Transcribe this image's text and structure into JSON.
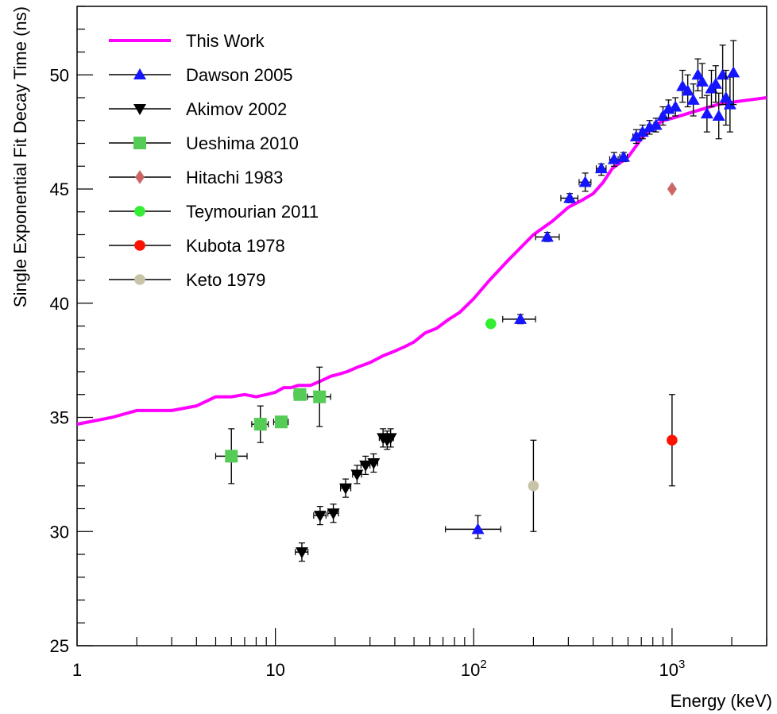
{
  "chart_data": {
    "type": "scatter",
    "xlabel": "Energy (keV)",
    "ylabel": "Single Exponential Fit Decay Time (ns)",
    "xscale": "log",
    "xlim": [
      1,
      3000
    ],
    "ylim": [
      25,
      53
    ],
    "x_ticks": [
      {
        "value": 1,
        "base": "1",
        "exp": ""
      },
      {
        "value": 10,
        "base": "10",
        "exp": ""
      },
      {
        "value": 100,
        "base": "10",
        "exp": "2"
      },
      {
        "value": 1000,
        "base": "10",
        "exp": "3"
      }
    ],
    "y_ticks": [
      25,
      30,
      35,
      40,
      45,
      50
    ],
    "legend_position": "top-left",
    "series": [
      {
        "name": "This Work",
        "kind": "line",
        "color": "#ff00ff",
        "points": [
          [
            1,
            34.7
          ],
          [
            1.5,
            35.0
          ],
          [
            2,
            35.3
          ],
          [
            3,
            35.3
          ],
          [
            4,
            35.5
          ],
          [
            5,
            35.9
          ],
          [
            6,
            35.9
          ],
          [
            7,
            36.0
          ],
          [
            8,
            35.9
          ],
          [
            9,
            36.0
          ],
          [
            10,
            36.1
          ],
          [
            11,
            36.3
          ],
          [
            12,
            36.3
          ],
          [
            13,
            36.4
          ],
          [
            15,
            36.4
          ],
          [
            17,
            36.6
          ],
          [
            19,
            36.8
          ],
          [
            21,
            36.9
          ],
          [
            23,
            37.0
          ],
          [
            26,
            37.2
          ],
          [
            30,
            37.4
          ],
          [
            35,
            37.7
          ],
          [
            40,
            37.9
          ],
          [
            45,
            38.1
          ],
          [
            50,
            38.3
          ],
          [
            57,
            38.7
          ],
          [
            65,
            38.9
          ],
          [
            75,
            39.3
          ],
          [
            85,
            39.6
          ],
          [
            100,
            40.2
          ],
          [
            120,
            41.0
          ],
          [
            150,
            41.9
          ],
          [
            200,
            43.0
          ],
          [
            250,
            43.6
          ],
          [
            300,
            44.2
          ],
          [
            350,
            44.5
          ],
          [
            400,
            44.8
          ],
          [
            450,
            45.3
          ],
          [
            500,
            45.9
          ],
          [
            600,
            46.4
          ],
          [
            700,
            47.2
          ],
          [
            800,
            47.7
          ],
          [
            900,
            48.0
          ],
          [
            1000,
            48.1
          ],
          [
            1300,
            48.4
          ],
          [
            1700,
            48.7
          ],
          [
            2200,
            48.85
          ],
          [
            3000,
            49.0
          ]
        ]
      },
      {
        "name": "Dawson 2005",
        "kind": "points",
        "marker": "triangle-up",
        "color": "#1515ff",
        "points": [
          {
            "x": 105,
            "y": 30.1,
            "xlo": 72,
            "xhi": 137,
            "ylo": 29.7,
            "yhi": 30.7
          },
          {
            "x": 172,
            "y": 39.3,
            "xlo": 140,
            "xhi": 205,
            "ylo": 39.1,
            "yhi": 39.5
          },
          {
            "x": 235,
            "y": 42.9,
            "xlo": 205,
            "xhi": 270,
            "ylo": 42.7,
            "yhi": 43.1
          },
          {
            "x": 305,
            "y": 44.6,
            "xlo": 275,
            "xhi": 335,
            "ylo": 44.4,
            "yhi": 44.8
          },
          {
            "x": 365,
            "y": 45.3,
            "xlo": 340,
            "xhi": 390,
            "ylo": 44.9,
            "yhi": 45.7
          },
          {
            "x": 440,
            "y": 45.9,
            "xlo": 415,
            "xhi": 465,
            "ylo": 45.6,
            "yhi": 46.1
          },
          {
            "x": 510,
            "y": 46.3,
            "xlo": 485,
            "xhi": 535,
            "ylo": 46.0,
            "yhi": 46.6
          },
          {
            "x": 570,
            "y": 46.4,
            "xlo": 545,
            "xhi": 595,
            "ylo": 46.2,
            "yhi": 46.6
          },
          {
            "x": 660,
            "y": 47.3,
            "xlo": 635,
            "xhi": 690,
            "ylo": 47.0,
            "yhi": 47.6
          },
          {
            "x": 710,
            "y": 47.5,
            "xlo": 690,
            "xhi": 730,
            "ylo": 47.2,
            "yhi": 47.8
          },
          {
            "x": 770,
            "y": 47.7,
            "xlo": 750,
            "xhi": 790,
            "ylo": 47.4,
            "yhi": 48.0
          },
          {
            "x": 830,
            "y": 47.8,
            "xlo": 810,
            "xhi": 850,
            "ylo": 47.5,
            "yhi": 48.1
          },
          {
            "x": 900,
            "y": 48.2,
            "xlo": 880,
            "xhi": 920,
            "ylo": 47.8,
            "yhi": 48.6
          },
          {
            "x": 960,
            "y": 48.5,
            "xlo": 940,
            "xhi": 980,
            "ylo": 48.1,
            "yhi": 48.9
          },
          {
            "x": 1040,
            "y": 48.6,
            "xlo": 1020,
            "xhi": 1060,
            "ylo": 48.2,
            "yhi": 49.0
          },
          {
            "x": 1130,
            "y": 49.5,
            "xlo": 1110,
            "xhi": 1150,
            "ylo": 48.8,
            "yhi": 50.2
          },
          {
            "x": 1200,
            "y": 49.3,
            "xlo": 1180,
            "xhi": 1220,
            "ylo": 48.6,
            "yhi": 50.0
          },
          {
            "x": 1280,
            "y": 48.9,
            "xlo": 1260,
            "xhi": 1300,
            "ylo": 48.2,
            "yhi": 49.6
          },
          {
            "x": 1350,
            "y": 50.0,
            "xlo": 1330,
            "xhi": 1370,
            "ylo": 49.3,
            "yhi": 50.7
          },
          {
            "x": 1420,
            "y": 49.7,
            "xlo": 1400,
            "xhi": 1440,
            "ylo": 49.0,
            "yhi": 50.5
          },
          {
            "x": 1500,
            "y": 48.3,
            "xlo": 1480,
            "xhi": 1520,
            "ylo": 47.5,
            "yhi": 49.1
          },
          {
            "x": 1580,
            "y": 49.4,
            "xlo": 1560,
            "xhi": 1600,
            "ylo": 48.6,
            "yhi": 50.2
          },
          {
            "x": 1660,
            "y": 49.6,
            "xlo": 1640,
            "xhi": 1680,
            "ylo": 48.8,
            "yhi": 50.4
          },
          {
            "x": 1720,
            "y": 48.2,
            "xlo": 1700,
            "xhi": 1740,
            "ylo": 47.2,
            "yhi": 49.2
          },
          {
            "x": 1800,
            "y": 50.0,
            "xlo": 1780,
            "xhi": 1820,
            "ylo": 48.7,
            "yhi": 51.3
          },
          {
            "x": 1870,
            "y": 49.0,
            "xlo": 1850,
            "xhi": 1890,
            "ylo": 47.8,
            "yhi": 50.2
          },
          {
            "x": 1960,
            "y": 48.7,
            "xlo": 1940,
            "xhi": 1980,
            "ylo": 47.5,
            "yhi": 49.9
          },
          {
            "x": 2040,
            "y": 50.1,
            "xlo": 2020,
            "xhi": 2060,
            "ylo": 48.7,
            "yhi": 51.5
          }
        ]
      },
      {
        "name": "Akimov 2002",
        "kind": "points",
        "marker": "triangle-down",
        "color": "#000000",
        "points": [
          {
            "x": 13.6,
            "y": 29.1,
            "xlo": 12.6,
            "xhi": 14.6,
            "ylo": 28.7,
            "yhi": 29.5
          },
          {
            "x": 16.8,
            "y": 30.7,
            "xlo": 15.6,
            "xhi": 18.0,
            "ylo": 30.3,
            "yhi": 31.1
          },
          {
            "x": 19.6,
            "y": 30.8,
            "xlo": 18.4,
            "xhi": 20.8,
            "ylo": 30.4,
            "yhi": 31.2
          },
          {
            "x": 22.6,
            "y": 31.9,
            "xlo": 21.3,
            "xhi": 24.0,
            "ylo": 31.5,
            "yhi": 32.3
          },
          {
            "x": 25.8,
            "y": 32.5,
            "xlo": 24.5,
            "xhi": 27.2,
            "ylo": 32.1,
            "yhi": 32.9
          },
          {
            "x": 28.5,
            "y": 32.9,
            "xlo": 27.0,
            "xhi": 30.0,
            "ylo": 32.5,
            "yhi": 33.3
          },
          {
            "x": 31.3,
            "y": 33.0,
            "xlo": 29.8,
            "xhi": 32.8,
            "ylo": 32.6,
            "yhi": 33.4
          },
          {
            "x": 34.9,
            "y": 34.1,
            "xlo": 33.4,
            "xhi": 36.4,
            "ylo": 33.7,
            "yhi": 34.5
          },
          {
            "x": 36.6,
            "y": 34.0,
            "xlo": 35.2,
            "xhi": 38.0,
            "ylo": 33.6,
            "yhi": 34.4
          },
          {
            "x": 38.1,
            "y": 34.1,
            "xlo": 36.8,
            "xhi": 39.4,
            "ylo": 33.7,
            "yhi": 34.5
          }
        ]
      },
      {
        "name": "Ueshima 2010",
        "kind": "points",
        "marker": "square",
        "color": "#55cc55",
        "points": [
          {
            "x": 6.0,
            "y": 33.3,
            "xlo": 5.0,
            "xhi": 7.2,
            "ylo": 32.1,
            "yhi": 34.5
          },
          {
            "x": 8.4,
            "y": 34.7,
            "xlo": 7.6,
            "xhi": 9.2,
            "ylo": 33.9,
            "yhi": 35.5
          },
          {
            "x": 10.7,
            "y": 34.8,
            "xlo": 9.8,
            "xhi": 11.6,
            "ylo": 34.6,
            "yhi": 35.0
          },
          {
            "x": 13.3,
            "y": 36.0,
            "xlo": 12.4,
            "xhi": 14.2,
            "ylo": 35.8,
            "yhi": 36.2
          },
          {
            "x": 16.7,
            "y": 35.9,
            "xlo": 14.5,
            "xhi": 19.0,
            "ylo": 34.6,
            "yhi": 37.2
          }
        ]
      },
      {
        "name": "Hitachi 1983",
        "kind": "points",
        "marker": "diamond",
        "color": "#cc6666",
        "points": [
          {
            "x": 1000,
            "y": 45.0
          }
        ]
      },
      {
        "name": "Teymourian 2011",
        "kind": "points",
        "marker": "circle",
        "color": "#33ee33",
        "points": [
          {
            "x": 122,
            "y": 39.1
          }
        ]
      },
      {
        "name": "Kubota 1978",
        "kind": "points",
        "marker": "circle",
        "color": "#ff1100",
        "points": [
          {
            "x": 1000,
            "y": 34.0,
            "ylo": 32.0,
            "yhi": 36.0
          }
        ]
      },
      {
        "name": "Keto 1979",
        "kind": "points",
        "marker": "circle",
        "color": "#c8c4a8",
        "points": [
          {
            "x": 200,
            "y": 32.0,
            "ylo": 30.0,
            "yhi": 34.0
          }
        ]
      }
    ]
  }
}
